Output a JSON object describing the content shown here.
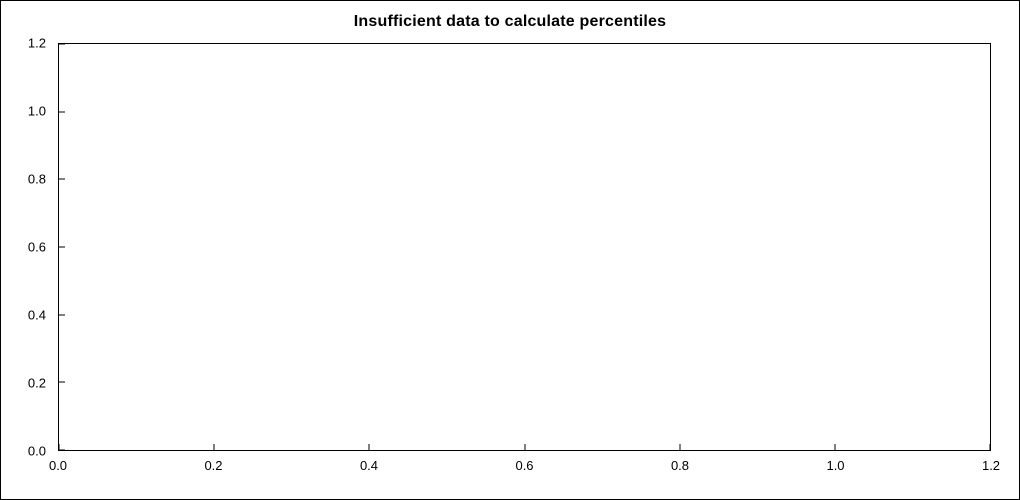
{
  "chart": {
    "title": "Insufficient data to calculate percentiles"
  },
  "chart_data": {
    "type": "scatter",
    "title": "Insufficient data to calculate percentiles",
    "xlabel": "",
    "ylabel": "",
    "xlim": [
      0.0,
      1.2
    ],
    "ylim": [
      0.0,
      1.2
    ],
    "x_ticks": [
      "0.0",
      "0.2",
      "0.4",
      "0.6",
      "0.8",
      "1.0",
      "1.2"
    ],
    "y_ticks": [
      "0.0",
      "0.2",
      "0.4",
      "0.6",
      "0.8",
      "1.0",
      "1.2"
    ],
    "series": [],
    "grid": false,
    "legend": false,
    "note": "Plot area is empty; no data points are rendered."
  },
  "colors": {
    "background": "#ffffff",
    "axis": "#000000",
    "text": "#000000"
  }
}
